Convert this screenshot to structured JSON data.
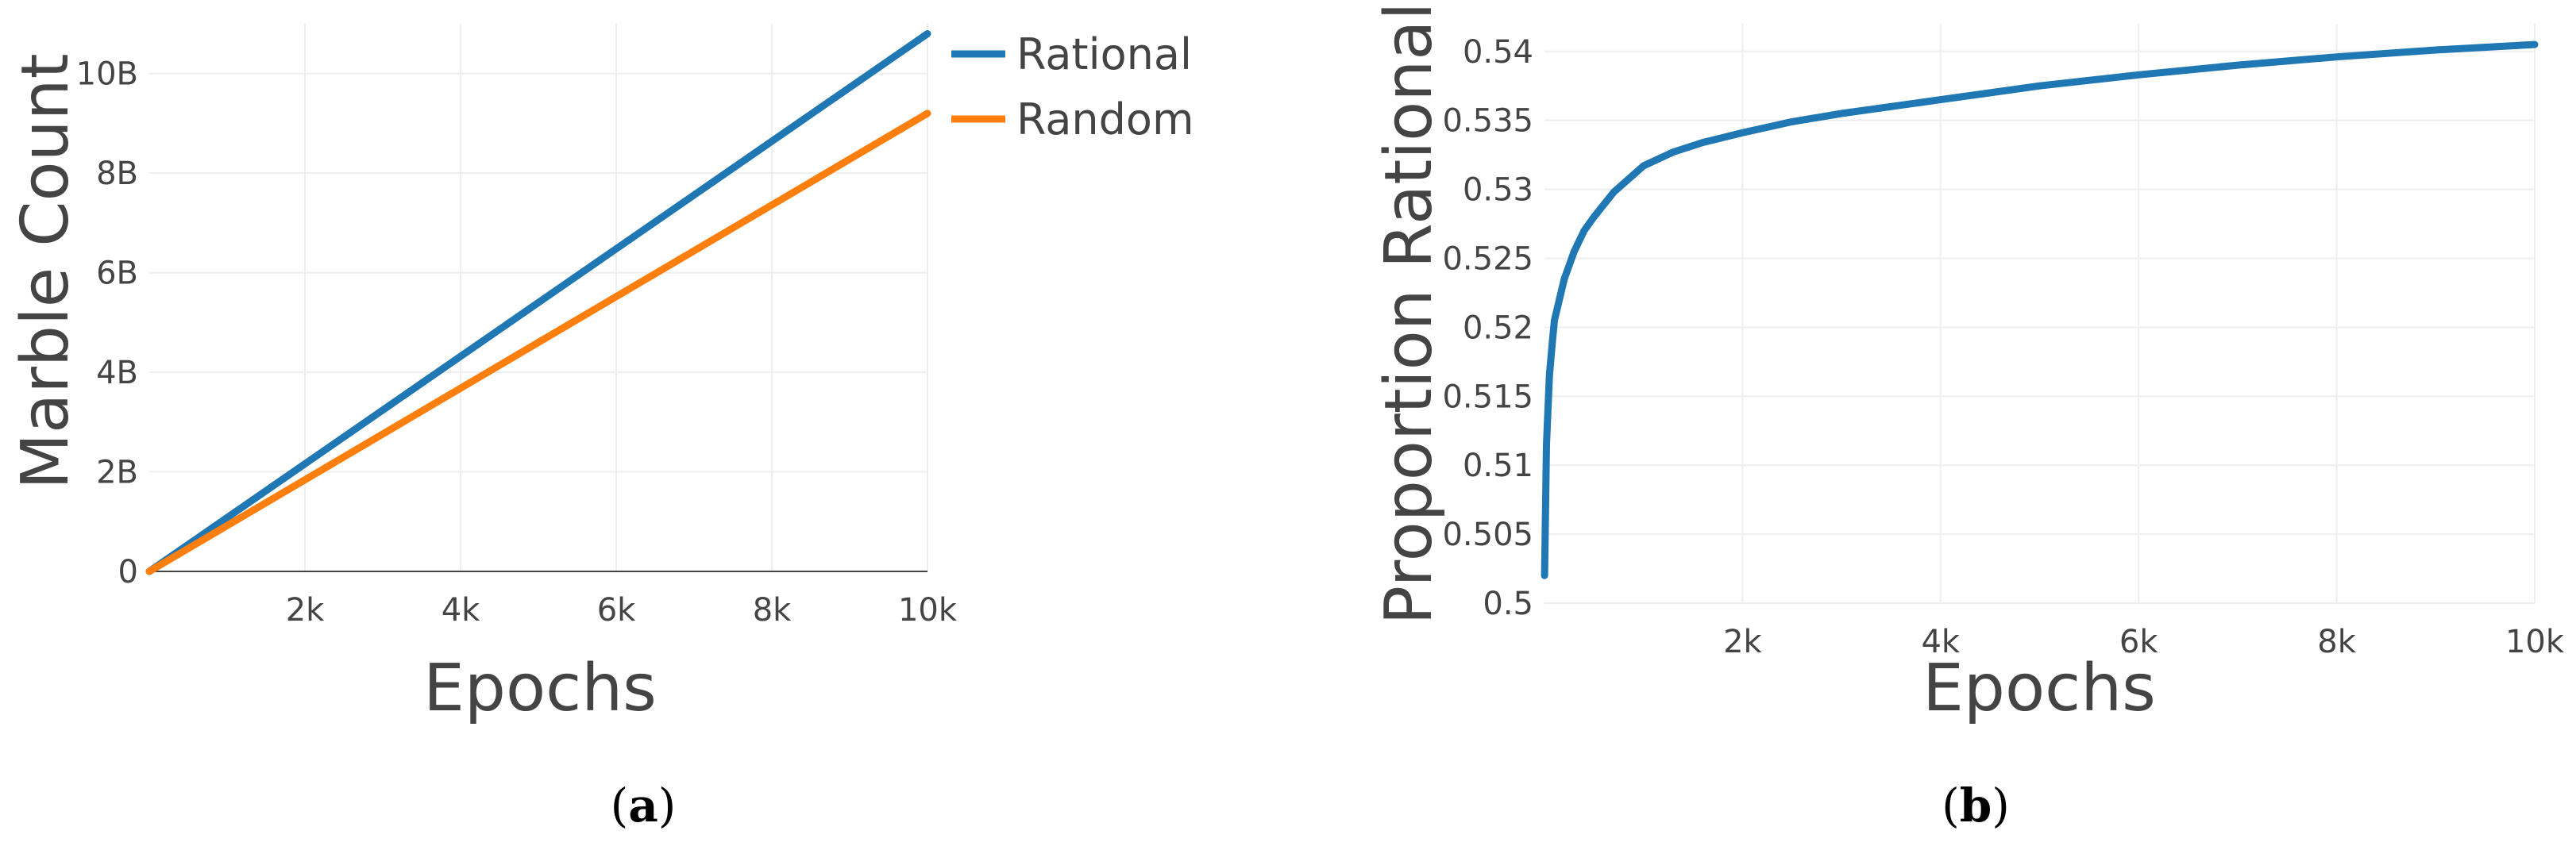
{
  "chart_data": [
    {
      "type": "line",
      "caption_letter": "a",
      "xlabel": "Epochs",
      "ylabel": "Marble Count",
      "xlim": [
        0,
        10000
      ],
      "ylim": [
        0,
        11000000000
      ],
      "x_ticks": [
        2000,
        4000,
        6000,
        8000,
        10000
      ],
      "x_tick_labels": [
        "2k",
        "4k",
        "6k",
        "8k",
        "10k"
      ],
      "y_ticks": [
        0,
        2000000000,
        4000000000,
        6000000000,
        8000000000,
        10000000000
      ],
      "y_tick_labels": [
        "0",
        "2B",
        "4B",
        "6B",
        "8B",
        "10B"
      ],
      "grid": true,
      "legend_position": "top-right-outside",
      "series": [
        {
          "name": "Rational",
          "color": "#1f77b4",
          "x": [
            0,
            10000
          ],
          "y": [
            0,
            10800000000
          ]
        },
        {
          "name": "Random",
          "color": "#ff7f0e",
          "x": [
            0,
            10000
          ],
          "y": [
            0,
            9200000000
          ]
        }
      ]
    },
    {
      "type": "line",
      "caption_letter": "b",
      "xlabel": "Epochs",
      "ylabel": "Proportion Rational",
      "xlim": [
        0,
        10000
      ],
      "ylim": [
        0.5,
        0.542
      ],
      "x_ticks": [
        2000,
        4000,
        6000,
        8000,
        10000
      ],
      "x_tick_labels": [
        "2k",
        "4k",
        "6k",
        "8k",
        "10k"
      ],
      "y_ticks": [
        0.5,
        0.505,
        0.51,
        0.515,
        0.52,
        0.525,
        0.53,
        0.535,
        0.54
      ],
      "y_tick_labels": [
        "0.5",
        "0.505",
        "0.51",
        "0.515",
        "0.52",
        "0.525",
        "0.53",
        "0.535",
        "0.54"
      ],
      "grid": true,
      "series": [
        {
          "color": "#1f77b4",
          "x": [
            1,
            20,
            50,
            80,
            100,
            150,
            200,
            300,
            400,
            500,
            700,
            1000,
            1300,
            1600,
            2000,
            2500,
            3000,
            3500,
            4000,
            5000,
            6000,
            7000,
            8000,
            9000,
            10000
          ],
          "y": [
            0.502,
            0.5115,
            0.5165,
            0.519,
            0.5205,
            0.522,
            0.5235,
            0.5255,
            0.527,
            0.528,
            0.5298,
            0.5317,
            0.5327,
            0.5334,
            0.5341,
            0.5349,
            0.5355,
            0.536,
            0.5365,
            0.5375,
            0.5383,
            0.539,
            0.5396,
            0.5401,
            0.5405
          ]
        }
      ]
    }
  ]
}
